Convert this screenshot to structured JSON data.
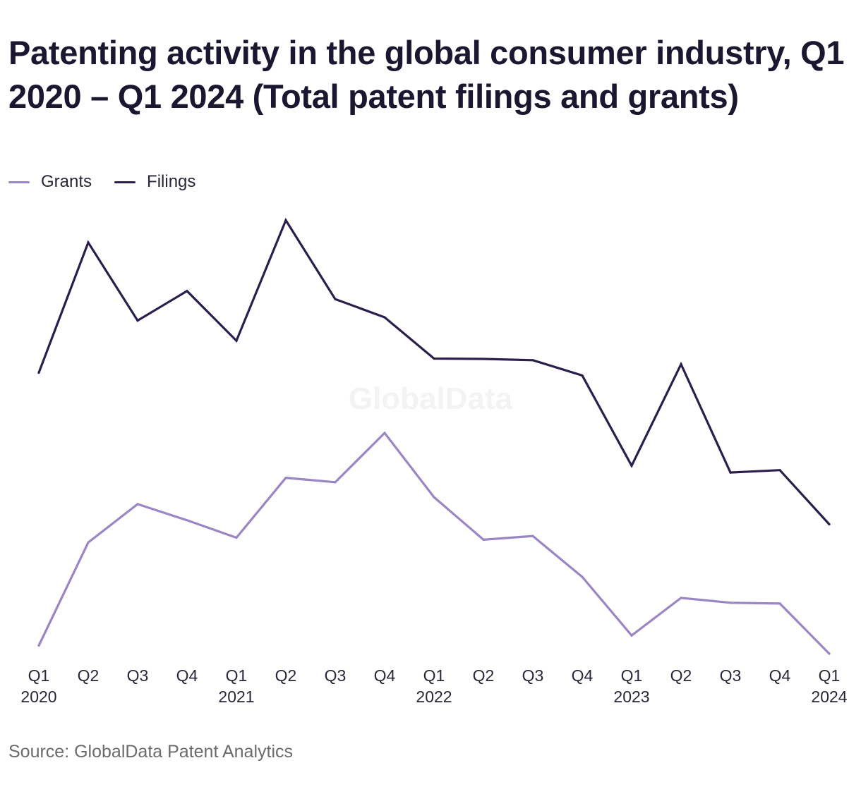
{
  "title": "Patenting activity in the global consumer industry, Q1 2020 – Q1 2024 (Total patent filings and grants)",
  "source": "Source: GlobalData Patent Analytics",
  "watermark": "GlobalData",
  "chart_data": {
    "type": "line",
    "title": "Patenting activity in the global consumer industry, Q1 2020 – Q1 2024 (Total patent filings and grants)",
    "xlabel": "",
    "ylabel": "",
    "grid": false,
    "legend_position": "top-left",
    "ylim": [
      0,
      1050
    ],
    "categories": [
      {
        "quarter": "Q1",
        "year": "2020"
      },
      {
        "quarter": "Q2",
        "year": ""
      },
      {
        "quarter": "Q3",
        "year": ""
      },
      {
        "quarter": "Q4",
        "year": ""
      },
      {
        "quarter": "Q1",
        "year": "2021"
      },
      {
        "quarter": "Q2",
        "year": ""
      },
      {
        "quarter": "Q3",
        "year": ""
      },
      {
        "quarter": "Q4",
        "year": ""
      },
      {
        "quarter": "Q1",
        "year": "2022"
      },
      {
        "quarter": "Q2",
        "year": ""
      },
      {
        "quarter": "Q3",
        "year": ""
      },
      {
        "quarter": "Q4",
        "year": ""
      },
      {
        "quarter": "Q1",
        "year": "2023"
      },
      {
        "quarter": "Q2",
        "year": ""
      },
      {
        "quarter": "Q3",
        "year": ""
      },
      {
        "quarter": "Q4",
        "year": ""
      },
      {
        "quarter": "Q1",
        "year": "2024"
      }
    ],
    "series": [
      {
        "name": "Grants",
        "color": "#9b85c4",
        "values": [
          20,
          275,
          370,
          330,
          287,
          435,
          424,
          546,
          387,
          282,
          291,
          190,
          45,
          138,
          126,
          124,
          0
        ]
      },
      {
        "name": "Filings",
        "color": "#2b1e4d",
        "values": [
          695,
          1017,
          824,
          897,
          774,
          1072,
          877,
          832,
          730,
          729,
          726,
          688,
          465,
          716,
          448,
          454,
          320
        ]
      }
    ]
  }
}
